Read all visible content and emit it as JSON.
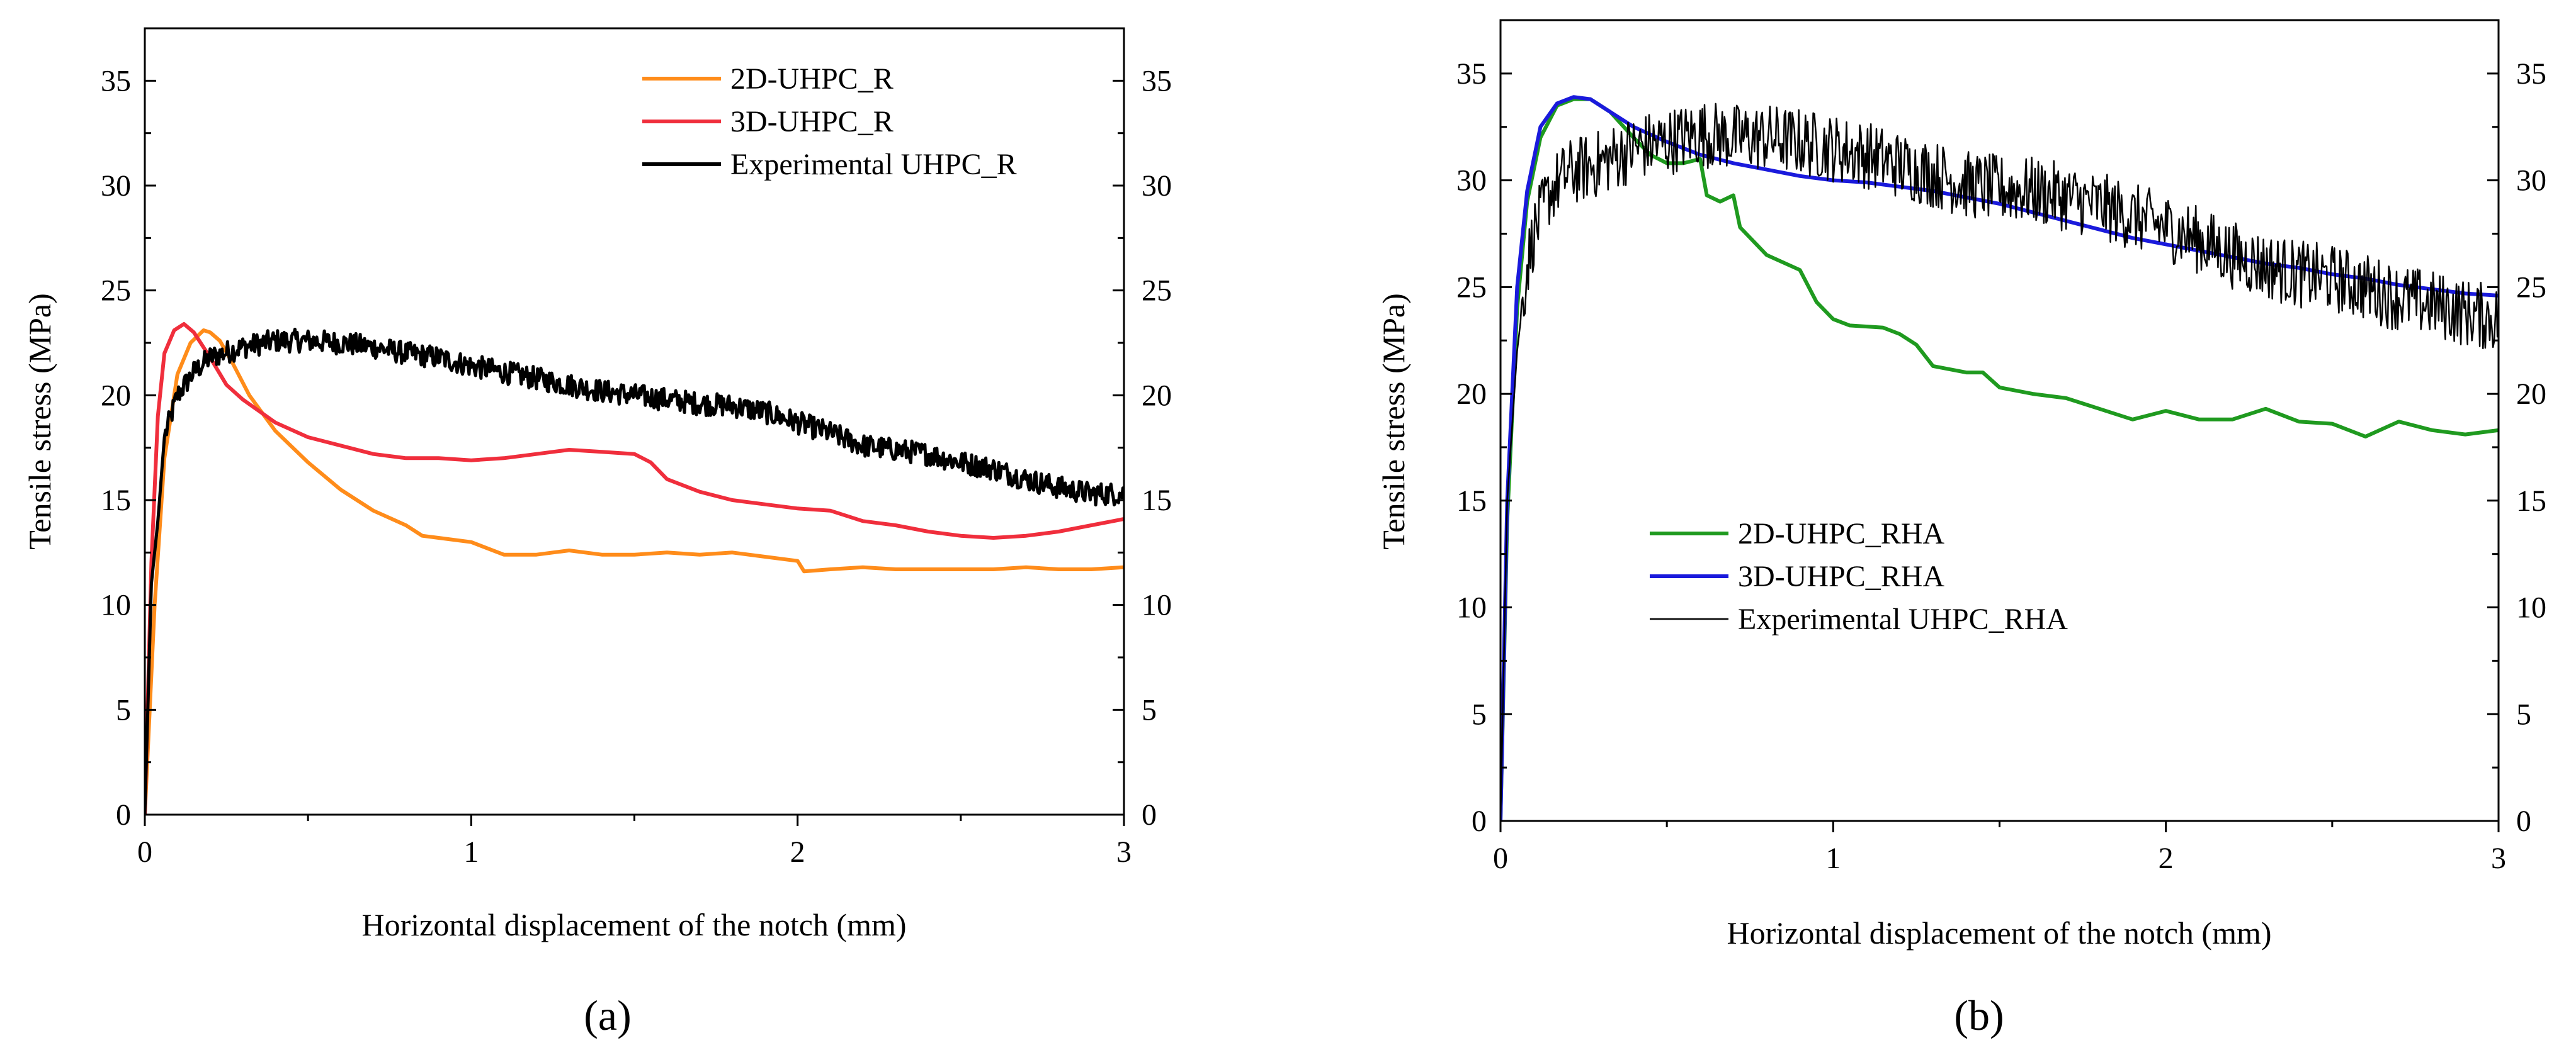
{
  "chart_data": [
    {
      "type": "line",
      "panel_label": "(a)",
      "xlabel": "Horizontal displacement of the notch (mm)",
      "ylabel": "Tensile stress (MPa)",
      "xlim": [
        0,
        3
      ],
      "ylim": [
        0,
        37.5
      ],
      "xticks": [
        0,
        1,
        2,
        3
      ],
      "yticks": [
        0,
        5,
        10,
        15,
        20,
        25,
        30,
        35
      ],
      "right_axis_mirrored": true,
      "legend_position": "top-right",
      "series": [
        {
          "name": "2D-UHPC_R",
          "color": "#ff8c1a",
          "noisy": false,
          "x": [
            0,
            0.03,
            0.06,
            0.1,
            0.14,
            0.18,
            0.2,
            0.23,
            0.27,
            0.32,
            0.4,
            0.5,
            0.6,
            0.7,
            0.8,
            0.85,
            0.9,
            1.0,
            1.1,
            1.2,
            1.3,
            1.4,
            1.5,
            1.6,
            1.7,
            1.8,
            1.9,
            2.0,
            2.02,
            2.1,
            2.2,
            2.3,
            2.4,
            2.5,
            2.6,
            2.7,
            2.8,
            2.9,
            3.0
          ],
          "y": [
            0,
            10,
            17,
            21,
            22.5,
            23.1,
            23.0,
            22.6,
            21.5,
            20,
            18.3,
            16.8,
            15.5,
            14.5,
            13.8,
            13.3,
            13.2,
            13.0,
            12.4,
            12.4,
            12.6,
            12.4,
            12.4,
            12.5,
            12.4,
            12.5,
            12.3,
            12.1,
            11.6,
            11.7,
            11.8,
            11.7,
            11.7,
            11.7,
            11.7,
            11.8,
            11.7,
            11.7,
            11.8
          ]
        },
        {
          "name": "3D-UHPC_R",
          "color": "#f02e3c",
          "noisy": false,
          "x": [
            0,
            0.02,
            0.04,
            0.06,
            0.09,
            0.12,
            0.15,
            0.2,
            0.25,
            0.3,
            0.4,
            0.5,
            0.6,
            0.7,
            0.8,
            0.9,
            1.0,
            1.1,
            1.2,
            1.3,
            1.4,
            1.5,
            1.55,
            1.6,
            1.7,
            1.8,
            1.9,
            2.0,
            2.1,
            2.2,
            2.3,
            2.4,
            2.5,
            2.6,
            2.7,
            2.8,
            2.9,
            3.0
          ],
          "y": [
            0,
            12,
            19,
            22,
            23.1,
            23.4,
            23.0,
            21.8,
            20.5,
            19.8,
            18.7,
            18.0,
            17.6,
            17.2,
            17.0,
            17.0,
            16.9,
            17.0,
            17.2,
            17.4,
            17.3,
            17.2,
            16.8,
            16.0,
            15.4,
            15.0,
            14.8,
            14.6,
            14.5,
            14.0,
            13.8,
            13.5,
            13.3,
            13.2,
            13.3,
            13.5,
            13.8,
            14.1
          ]
        },
        {
          "name": "Experimental UHPC_R",
          "color": "#000000",
          "noisy": true,
          "noise_amplitude": 0.55,
          "x": [
            0,
            0.02,
            0.04,
            0.06,
            0.1,
            0.15,
            0.2,
            0.3,
            0.4,
            0.5,
            0.6,
            0.7,
            0.8,
            0.9,
            1.0,
            1.1,
            1.2,
            1.3,
            1.4,
            1.5,
            1.6,
            1.7,
            1.8,
            1.9,
            2.0,
            2.1,
            2.2,
            2.3,
            2.4,
            2.5,
            2.6,
            2.7,
            2.8,
            2.9,
            3.0
          ],
          "y": [
            0,
            11,
            14,
            18,
            20,
            21.1,
            21.8,
            22.3,
            22.6,
            22.6,
            22.5,
            22.3,
            22.0,
            21.8,
            21.4,
            21.1,
            20.8,
            20.5,
            20.2,
            20.0,
            19.8,
            19.6,
            19.5,
            19.2,
            18.7,
            18.2,
            17.6,
            17.4,
            17.2,
            16.8,
            16.5,
            16.0,
            15.6,
            15.3,
            15.3
          ]
        }
      ]
    },
    {
      "type": "line",
      "panel_label": "(b)",
      "xlabel": "Horizontal displacement of the notch (mm)",
      "ylabel": "Tensile stress (MPa)",
      "xlim": [
        0,
        3
      ],
      "ylim": [
        0,
        37.5
      ],
      "xticks": [
        0,
        1,
        2,
        3
      ],
      "yticks": [
        0,
        5,
        10,
        15,
        20,
        25,
        30,
        35
      ],
      "right_axis_mirrored": true,
      "legend_position": "center-left",
      "series": [
        {
          "name": "2D-UHPC_RHA",
          "color": "#1f9a1f",
          "noisy": false,
          "x": [
            0,
            0.02,
            0.05,
            0.08,
            0.12,
            0.17,
            0.22,
            0.27,
            0.33,
            0.4,
            0.45,
            0.5,
            0.55,
            0.6,
            0.62,
            0.66,
            0.7,
            0.72,
            0.8,
            0.9,
            0.95,
            1.0,
            1.05,
            1.15,
            1.2,
            1.25,
            1.3,
            1.4,
            1.45,
            1.5,
            1.6,
            1.7,
            1.8,
            1.9,
            2.0,
            2.1,
            2.2,
            2.3,
            2.4,
            2.5,
            2.6,
            2.7,
            2.8,
            2.9,
            3.0
          ],
          "y": [
            0,
            14,
            24,
            29,
            32,
            33.5,
            33.8,
            33.8,
            33.2,
            32.0,
            31.2,
            30.8,
            30.8,
            31.0,
            29.3,
            29.0,
            29.3,
            27.8,
            26.5,
            25.8,
            24.3,
            23.5,
            23.2,
            23.1,
            22.8,
            22.3,
            21.3,
            21.0,
            21.0,
            20.3,
            20.0,
            19.8,
            19.3,
            18.8,
            19.2,
            18.8,
            18.8,
            19.3,
            18.7,
            18.6,
            18.0,
            18.7,
            18.3,
            18.1,
            18.3
          ]
        },
        {
          "name": "3D-UHPC_RHA",
          "color": "#1a1adc",
          "noisy": false,
          "x": [
            0,
            0.02,
            0.05,
            0.08,
            0.12,
            0.17,
            0.22,
            0.27,
            0.3,
            0.35,
            0.4,
            0.5,
            0.6,
            0.7,
            0.8,
            0.9,
            1.0,
            1.1,
            1.2,
            1.3,
            1.4,
            1.5,
            1.6,
            1.7,
            1.8,
            1.9,
            2.0,
            2.1,
            2.2,
            2.3,
            2.4,
            2.5,
            2.6,
            2.7,
            2.8,
            2.9,
            3.0
          ],
          "y": [
            0,
            15,
            25,
            29.5,
            32.5,
            33.6,
            33.9,
            33.8,
            33.5,
            33.0,
            32.5,
            31.8,
            31.2,
            30.8,
            30.5,
            30.2,
            30.0,
            29.9,
            29.7,
            29.5,
            29.2,
            28.9,
            28.5,
            28.1,
            27.7,
            27.3,
            27.0,
            26.7,
            26.4,
            26.1,
            25.9,
            25.6,
            25.4,
            25.1,
            24.9,
            24.7,
            24.6
          ]
        },
        {
          "name": "Experimental UHPC_RHA",
          "color": "#000000",
          "noisy": true,
          "noise_amplitude": 1.6,
          "x": [
            0,
            0.02,
            0.05,
            0.08,
            0.1,
            0.15,
            0.2,
            0.3,
            0.4,
            0.5,
            0.6,
            0.7,
            0.8,
            0.9,
            1.0,
            1.1,
            1.2,
            1.3,
            1.4,
            1.5,
            1.6,
            1.7,
            1.8,
            1.9,
            2.0,
            2.1,
            2.2,
            2.3,
            2.4,
            2.5,
            2.6,
            2.7,
            2.8,
            2.9,
            3.0
          ],
          "y": [
            0,
            15,
            22,
            26,
            27.5,
            29.5,
            30.3,
            30.8,
            31.5,
            31.8,
            32.2,
            32.0,
            32.0,
            31.8,
            31.5,
            31.2,
            30.7,
            30.3,
            29.8,
            29.6,
            29.5,
            29.2,
            28.8,
            28.3,
            27.8,
            27.2,
            26.5,
            26.0,
            25.6,
            25.4,
            25.0,
            24.5,
            24.2,
            23.8,
            23.5
          ]
        }
      ]
    }
  ]
}
